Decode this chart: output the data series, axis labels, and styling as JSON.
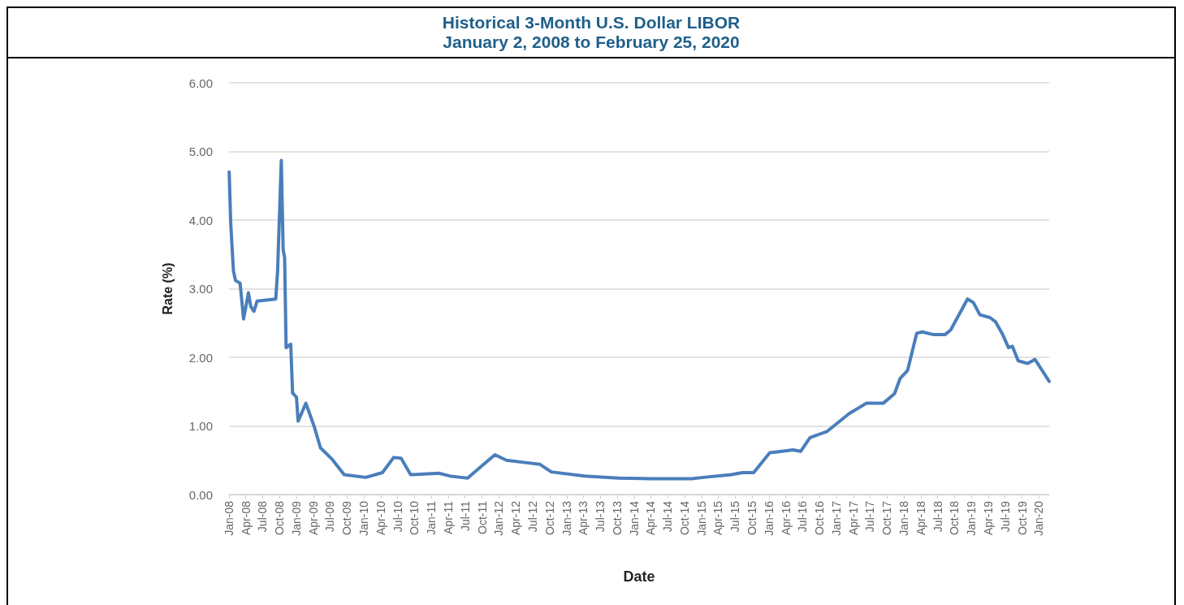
{
  "chart_data": {
    "type": "line",
    "title": "Historical 3-Month U.S. Dollar LIBOR",
    "subtitle": "January 2, 2008 to February 25, 2020",
    "xlabel": "Date",
    "ylabel": "Rate (%)",
    "x": [
      "2008-01-02",
      "2008-01-10",
      "2008-01-25",
      "2008-02-05",
      "2008-03-01",
      "2008-03-20",
      "2008-04-05",
      "2008-04-15",
      "2008-04-28",
      "2008-05-15",
      "2008-06-01",
      "2008-09-10",
      "2008-09-20",
      "2008-10-10",
      "2008-10-20",
      "2008-10-28",
      "2008-11-05",
      "2008-11-30",
      "2008-12-10",
      "2008-12-31",
      "2009-01-09",
      "2009-02-20",
      "2009-04-05",
      "2009-05-10",
      "2009-07-10",
      "2009-09-15",
      "2010-01-10",
      "2010-04-10",
      "2010-06-10",
      "2010-07-20",
      "2010-09-10",
      "2011-02-10",
      "2011-04-10",
      "2011-06-10",
      "2011-07-15",
      "2011-10-10",
      "2011-12-10",
      "2012-02-10",
      "2012-06-10",
      "2012-08-10",
      "2012-10-10",
      "2013-04-10",
      "2013-10-10",
      "2014-04-10",
      "2014-11-10",
      "2015-01-10",
      "2015-06-10",
      "2015-08-10",
      "2015-10-10",
      "2016-01-05",
      "2016-03-10",
      "2016-05-10",
      "2016-06-20",
      "2016-08-10",
      "2016-11-10",
      "2017-03-10",
      "2017-06-10",
      "2017-09-10",
      "2017-11-10",
      "2017-12-10",
      "2018-01-20",
      "2018-03-10",
      "2018-04-10",
      "2018-06-10",
      "2018-08-10",
      "2018-09-10",
      "2018-12-10",
      "2019-01-10",
      "2019-02-15",
      "2019-04-10",
      "2019-05-10",
      "2019-06-15",
      "2019-07-20",
      "2019-08-10",
      "2019-09-10",
      "2019-11-01",
      "2019-12-10",
      "2020-02-25"
    ],
    "series": [
      {
        "color": "#4a7ebb",
        "values": [
          4.7,
          3.97,
          3.26,
          3.12,
          3.08,
          2.56,
          2.79,
          2.94,
          2.74,
          2.67,
          2.82,
          2.85,
          3.26,
          4.87,
          3.57,
          3.45,
          2.14,
          2.19,
          1.48,
          1.42,
          1.07,
          1.33,
          1.0,
          0.68,
          0.52,
          0.29,
          0.25,
          0.32,
          0.54,
          0.53,
          0.29,
          0.31,
          0.27,
          0.25,
          0.24,
          0.44,
          0.58,
          0.5,
          0.46,
          0.44,
          0.33,
          0.27,
          0.24,
          0.23,
          0.23,
          0.25,
          0.29,
          0.32,
          0.32,
          0.61,
          0.63,
          0.65,
          0.63,
          0.83,
          0.92,
          1.18,
          1.33,
          1.33,
          1.47,
          1.69,
          1.81,
          2.35,
          2.37,
          2.33,
          2.33,
          2.4,
          2.85,
          2.8,
          2.62,
          2.58,
          2.52,
          2.35,
          2.14,
          2.16,
          1.95,
          1.91,
          1.97,
          1.65
        ]
      }
    ],
    "xlim": [
      "2008-01-01",
      "2020-02-25"
    ],
    "xticks": [
      {
        "value": "2008-01-01",
        "label": "Jan-08"
      },
      {
        "value": "2008-04-01",
        "label": "Apr-08"
      },
      {
        "value": "2008-07-01",
        "label": "Jul-08"
      },
      {
        "value": "2008-10-01",
        "label": "Oct-08"
      },
      {
        "value": "2009-01-01",
        "label": "Jan-09"
      },
      {
        "value": "2009-04-01",
        "label": "Apr-09"
      },
      {
        "value": "2009-07-01",
        "label": "Jul-09"
      },
      {
        "value": "2009-10-01",
        "label": "Oct-09"
      },
      {
        "value": "2010-01-01",
        "label": "Jan-10"
      },
      {
        "value": "2010-04-01",
        "label": "Apr-10"
      },
      {
        "value": "2010-07-01",
        "label": "Jul-10"
      },
      {
        "value": "2010-10-01",
        "label": "Oct-10"
      },
      {
        "value": "2011-01-01",
        "label": "Jan-11"
      },
      {
        "value": "2011-04-01",
        "label": "Apr-11"
      },
      {
        "value": "2011-07-01",
        "label": "Jul-11"
      },
      {
        "value": "2011-10-01",
        "label": "Oct-11"
      },
      {
        "value": "2012-01-01",
        "label": "Jan-12"
      },
      {
        "value": "2012-04-01",
        "label": "Apr-12"
      },
      {
        "value": "2012-07-01",
        "label": "Jul-12"
      },
      {
        "value": "2012-10-01",
        "label": "Oct-12"
      },
      {
        "value": "2013-01-01",
        "label": "Jan-13"
      },
      {
        "value": "2013-04-01",
        "label": "Apr-13"
      },
      {
        "value": "2013-07-01",
        "label": "Jul-13"
      },
      {
        "value": "2013-10-01",
        "label": "Oct-13"
      },
      {
        "value": "2014-01-01",
        "label": "Jan-14"
      },
      {
        "value": "2014-04-01",
        "label": "Apr-14"
      },
      {
        "value": "2014-07-01",
        "label": "Jul-14"
      },
      {
        "value": "2014-10-01",
        "label": "Oct-14"
      },
      {
        "value": "2015-01-01",
        "label": "Jan-15"
      },
      {
        "value": "2015-04-01",
        "label": "Apr-15"
      },
      {
        "value": "2015-07-01",
        "label": "Jul-15"
      },
      {
        "value": "2015-10-01",
        "label": "Oct-15"
      },
      {
        "value": "2016-01-01",
        "label": "Jan-16"
      },
      {
        "value": "2016-04-01",
        "label": "Apr-16"
      },
      {
        "value": "2016-07-01",
        "label": "Jul-16"
      },
      {
        "value": "2016-10-01",
        "label": "Oct-16"
      },
      {
        "value": "2017-01-01",
        "label": "Jan-17"
      },
      {
        "value": "2017-04-01",
        "label": "Apr-17"
      },
      {
        "value": "2017-07-01",
        "label": "Jul-17"
      },
      {
        "value": "2017-10-01",
        "label": "Oct-17"
      },
      {
        "value": "2018-01-01",
        "label": "Jan-18"
      },
      {
        "value": "2018-04-01",
        "label": "Apr-18"
      },
      {
        "value": "2018-07-01",
        "label": "Jul-18"
      },
      {
        "value": "2018-10-01",
        "label": "Oct-18"
      },
      {
        "value": "2019-01-01",
        "label": "Jan-19"
      },
      {
        "value": "2019-04-01",
        "label": "Apr-19"
      },
      {
        "value": "2019-07-01",
        "label": "Jul-19"
      },
      {
        "value": "2019-10-01",
        "label": "Oct-19"
      },
      {
        "value": "2020-01-01",
        "label": "Jan-20"
      }
    ],
    "ylim": [
      0,
      6
    ],
    "yticks": [
      {
        "value": 0,
        "label": "0.00"
      },
      {
        "value": 1,
        "label": "1.00"
      },
      {
        "value": 2,
        "label": "2.00"
      },
      {
        "value": 3,
        "label": "3.00"
      },
      {
        "value": 4,
        "label": "4.00"
      },
      {
        "value": 5,
        "label": "5.00"
      },
      {
        "value": 6,
        "label": "6.00"
      }
    ],
    "grid": "y",
    "marker": "none",
    "line_style": "solid"
  }
}
